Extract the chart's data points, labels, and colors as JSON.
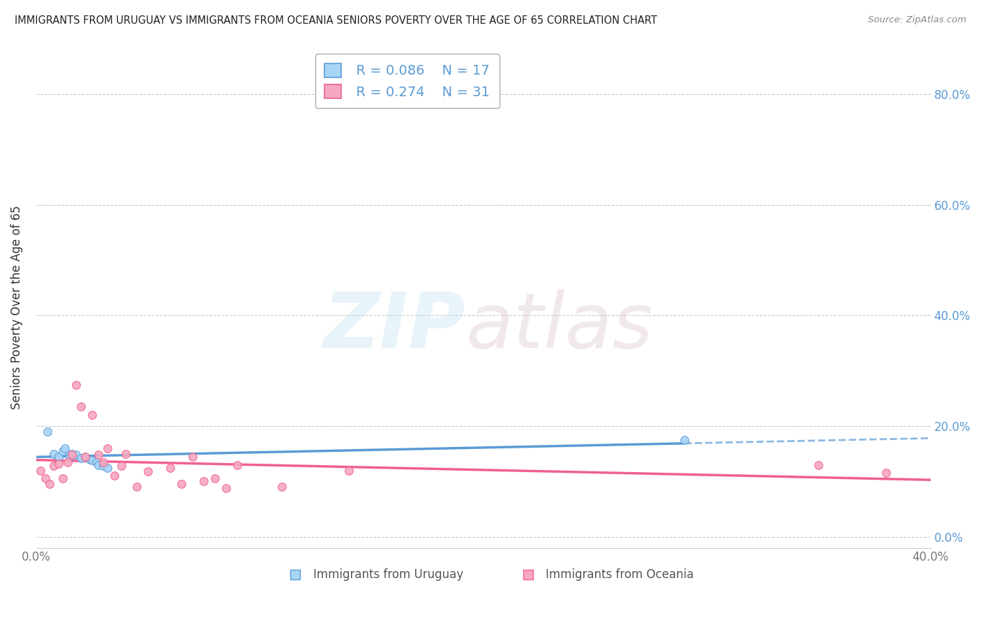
{
  "title": "IMMIGRANTS FROM URUGUAY VS IMMIGRANTS FROM OCEANIA SENIORS POVERTY OVER THE AGE OF 65 CORRELATION CHART",
  "source": "Source: ZipAtlas.com",
  "ylabel": "Seniors Poverty Over the Age of 65",
  "xlim": [
    0.0,
    0.4
  ],
  "ylim": [
    -0.02,
    0.85
  ],
  "yticks": [
    0.0,
    0.2,
    0.4,
    0.6,
    0.8
  ],
  "right_ytick_labels": [
    "0.0%",
    "20.0%",
    "40.0%",
    "60.0%",
    "80.0%"
  ],
  "legend_r_uruguay": "R = 0.086",
  "legend_n_uruguay": "N = 17",
  "legend_r_oceania": "R = 0.274",
  "legend_n_oceania": "N = 31",
  "color_uruguay": "#a8d4f5",
  "color_oceania": "#f5a8c0",
  "color_uruguay_line": "#5b9bd5",
  "color_oceania_line": "#f06090",
  "uruguay_scatter_x": [
    0.005,
    0.008,
    0.01,
    0.012,
    0.013,
    0.015,
    0.016,
    0.018,
    0.02,
    0.022,
    0.024,
    0.025,
    0.027,
    0.028,
    0.03,
    0.032,
    0.29
  ],
  "uruguay_scatter_y": [
    0.19,
    0.15,
    0.145,
    0.155,
    0.16,
    0.145,
    0.15,
    0.148,
    0.142,
    0.145,
    0.14,
    0.138,
    0.135,
    0.13,
    0.128,
    0.125,
    0.175
  ],
  "oceania_scatter_x": [
    0.002,
    0.004,
    0.006,
    0.008,
    0.01,
    0.012,
    0.014,
    0.016,
    0.018,
    0.02,
    0.022,
    0.025,
    0.028,
    0.03,
    0.032,
    0.035,
    0.038,
    0.04,
    0.045,
    0.05,
    0.06,
    0.065,
    0.07,
    0.075,
    0.08,
    0.085,
    0.09,
    0.11,
    0.14,
    0.35,
    0.38
  ],
  "oceania_scatter_y": [
    0.12,
    0.105,
    0.095,
    0.128,
    0.132,
    0.105,
    0.135,
    0.148,
    0.275,
    0.235,
    0.145,
    0.22,
    0.148,
    0.135,
    0.16,
    0.11,
    0.128,
    0.15,
    0.09,
    0.118,
    0.125,
    0.095,
    0.145,
    0.1,
    0.105,
    0.088,
    0.13,
    0.09,
    0.12,
    0.13,
    0.115
  ],
  "line_solid_end_uruguay": 0.29,
  "line_solid_end_oceania": 0.4,
  "bg_color": "#ffffff",
  "grid_color": "#c8c8c8",
  "title_color": "#222222",
  "source_color": "#888888",
  "axis_label_color": "#333333",
  "tick_color": "#777777",
  "right_tick_color": "#5b9bd5"
}
